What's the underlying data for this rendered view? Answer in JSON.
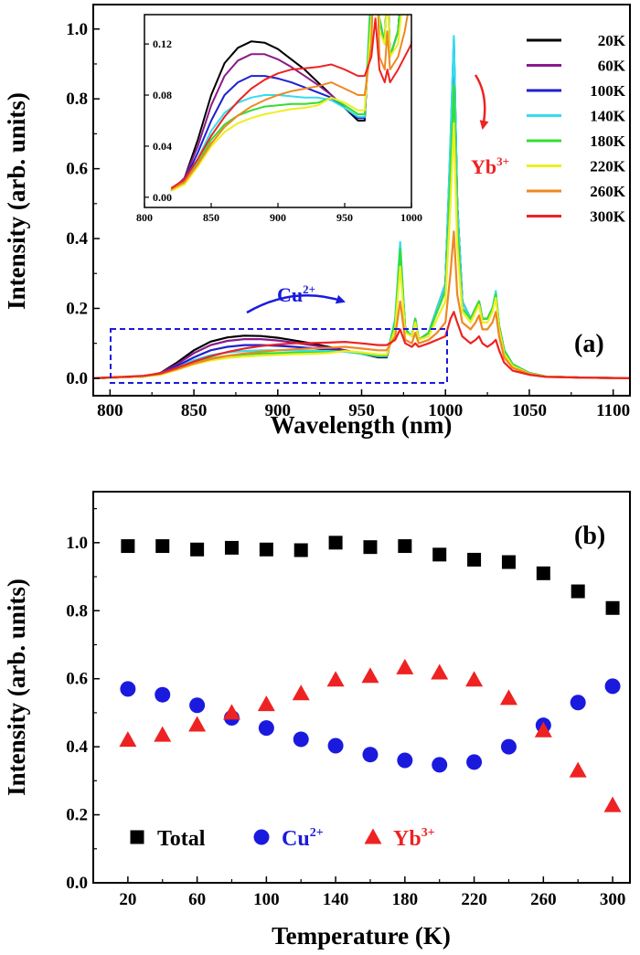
{
  "chart_data": [
    {
      "type": "line",
      "panel_label": "(a)",
      "xlabel": "Wavelength (nm)",
      "ylabel": "Intensity (arb. units)",
      "xlim": [
        790,
        1110
      ],
      "ylim": [
        -0.05,
        1.07
      ],
      "x_ticks": [
        "800",
        "850",
        "900",
        "950",
        "1000",
        "1050",
        "1100"
      ],
      "y_ticks": [
        "0.0",
        "0.2",
        "0.4",
        "0.6",
        "0.8",
        "1.0"
      ],
      "legend_position": "top-right",
      "series": [
        {
          "name": "20K",
          "color": "#000000",
          "x": [
            790,
            820,
            830,
            840,
            850,
            860,
            870,
            880,
            890,
            900,
            910,
            920,
            930,
            940,
            950,
            960,
            965,
            970,
            973,
            976,
            980,
            982,
            984,
            990,
            995,
            1000,
            1003,
            1005,
            1007,
            1010,
            1015,
            1018,
            1020,
            1022,
            1025,
            1028,
            1030,
            1032,
            1035,
            1040,
            1050,
            1060,
            1080,
            1110
          ],
          "y": [
            0,
            0.005,
            0.015,
            0.045,
            0.08,
            0.105,
            0.117,
            0.122,
            0.121,
            0.116,
            0.108,
            0.1,
            0.09,
            0.08,
            0.07,
            0.06,
            0.06,
            0.16,
            0.35,
            0.14,
            0.12,
            0.17,
            0.11,
            0.13,
            0.2,
            0.27,
            0.65,
            0.95,
            0.5,
            0.22,
            0.17,
            0.2,
            0.22,
            0.17,
            0.17,
            0.2,
            0.24,
            0.15,
            0.08,
            0.04,
            0.015,
            0.005,
            0.002,
            0
          ]
        },
        {
          "name": "60K",
          "color": "#8b1a8b",
          "x": [
            790,
            820,
            830,
            840,
            850,
            860,
            870,
            880,
            890,
            900,
            910,
            920,
            930,
            940,
            950,
            960,
            965,
            970,
            973,
            976,
            980,
            982,
            984,
            990,
            995,
            1000,
            1003,
            1005,
            1007,
            1010,
            1015,
            1018,
            1020,
            1022,
            1025,
            1028,
            1030,
            1032,
            1035,
            1040,
            1050,
            1060,
            1080,
            1110
          ],
          "y": [
            0,
            0.005,
            0.015,
            0.04,
            0.072,
            0.095,
            0.107,
            0.112,
            0.112,
            0.108,
            0.102,
            0.095,
            0.088,
            0.08,
            0.07,
            0.062,
            0.062,
            0.16,
            0.36,
            0.14,
            0.12,
            0.17,
            0.11,
            0.13,
            0.2,
            0.27,
            0.66,
            0.96,
            0.5,
            0.22,
            0.17,
            0.2,
            0.22,
            0.17,
            0.17,
            0.2,
            0.24,
            0.15,
            0.08,
            0.04,
            0.015,
            0.005,
            0.002,
            0
          ]
        },
        {
          "name": "100K",
          "color": "#1f1fcf",
          "x": [
            790,
            820,
            830,
            840,
            850,
            860,
            870,
            880,
            890,
            900,
            910,
            920,
            930,
            940,
            950,
            960,
            965,
            970,
            973,
            976,
            980,
            982,
            984,
            990,
            995,
            1000,
            1003,
            1005,
            1007,
            1010,
            1015,
            1018,
            1020,
            1022,
            1025,
            1028,
            1030,
            1032,
            1035,
            1040,
            1050,
            1060,
            1080,
            1110
          ],
          "y": [
            0,
            0.005,
            0.013,
            0.035,
            0.06,
            0.08,
            0.09,
            0.095,
            0.095,
            0.093,
            0.09,
            0.086,
            0.082,
            0.078,
            0.07,
            0.062,
            0.062,
            0.16,
            0.37,
            0.14,
            0.12,
            0.17,
            0.11,
            0.13,
            0.2,
            0.27,
            0.67,
            0.97,
            0.5,
            0.22,
            0.17,
            0.2,
            0.22,
            0.17,
            0.17,
            0.2,
            0.24,
            0.15,
            0.08,
            0.04,
            0.015,
            0.005,
            0.002,
            0
          ]
        },
        {
          "name": "140K",
          "color": "#33ddee",
          "x": [
            790,
            820,
            830,
            840,
            850,
            860,
            870,
            880,
            890,
            900,
            910,
            920,
            930,
            940,
            950,
            960,
            965,
            970,
            973,
            976,
            980,
            982,
            984,
            990,
            995,
            1000,
            1003,
            1005,
            1007,
            1010,
            1015,
            1018,
            1020,
            1022,
            1025,
            1028,
            1030,
            1032,
            1035,
            1040,
            1050,
            1060,
            1080,
            1110
          ],
          "y": [
            0,
            0.005,
            0.012,
            0.03,
            0.052,
            0.066,
            0.074,
            0.078,
            0.08,
            0.08,
            0.079,
            0.078,
            0.078,
            0.076,
            0.07,
            0.063,
            0.063,
            0.17,
            0.39,
            0.14,
            0.12,
            0.17,
            0.11,
            0.13,
            0.2,
            0.27,
            0.68,
            0.98,
            0.5,
            0.22,
            0.17,
            0.2,
            0.22,
            0.17,
            0.17,
            0.2,
            0.25,
            0.15,
            0.08,
            0.04,
            0.015,
            0.005,
            0.002,
            0
          ]
        },
        {
          "name": "180K",
          "color": "#33dd33",
          "x": [
            790,
            820,
            830,
            840,
            850,
            860,
            870,
            880,
            890,
            900,
            910,
            920,
            930,
            940,
            950,
            960,
            965,
            970,
            973,
            976,
            980,
            982,
            984,
            990,
            995,
            1000,
            1003,
            1005,
            1007,
            1010,
            1015,
            1018,
            1020,
            1022,
            1025,
            1028,
            1030,
            1032,
            1035,
            1040,
            1050,
            1060,
            1080,
            1110
          ],
          "y": [
            0,
            0.005,
            0.011,
            0.027,
            0.045,
            0.057,
            0.064,
            0.068,
            0.071,
            0.072,
            0.073,
            0.073,
            0.074,
            0.078,
            0.072,
            0.065,
            0.065,
            0.16,
            0.37,
            0.14,
            0.12,
            0.17,
            0.11,
            0.13,
            0.19,
            0.25,
            0.58,
            0.84,
            0.44,
            0.2,
            0.17,
            0.2,
            0.22,
            0.17,
            0.17,
            0.2,
            0.24,
            0.15,
            0.08,
            0.04,
            0.015,
            0.005,
            0.002,
            0
          ]
        },
        {
          "name": "220K",
          "color": "#eeee22",
          "x": [
            790,
            820,
            830,
            840,
            850,
            860,
            870,
            880,
            890,
            900,
            910,
            920,
            930,
            940,
            950,
            960,
            965,
            970,
            973,
            976,
            980,
            982,
            984,
            990,
            995,
            1000,
            1003,
            1005,
            1007,
            1010,
            1015,
            1018,
            1020,
            1022,
            1025,
            1028,
            1030,
            1032,
            1035,
            1040,
            1050,
            1060,
            1080,
            1110
          ],
          "y": [
            0,
            0.005,
            0.01,
            0.024,
            0.04,
            0.051,
            0.058,
            0.062,
            0.065,
            0.067,
            0.069,
            0.07,
            0.072,
            0.078,
            0.074,
            0.068,
            0.068,
            0.14,
            0.32,
            0.13,
            0.12,
            0.16,
            0.11,
            0.12,
            0.17,
            0.22,
            0.5,
            0.73,
            0.38,
            0.19,
            0.16,
            0.19,
            0.21,
            0.16,
            0.16,
            0.19,
            0.23,
            0.14,
            0.07,
            0.035,
            0.013,
            0.005,
            0.002,
            0
          ]
        },
        {
          "name": "260K",
          "color": "#ee8822",
          "x": [
            790,
            820,
            830,
            840,
            850,
            860,
            870,
            880,
            890,
            900,
            910,
            920,
            930,
            940,
            950,
            960,
            965,
            970,
            973,
            976,
            980,
            982,
            984,
            990,
            995,
            1000,
            1003,
            1005,
            1007,
            1010,
            1015,
            1018,
            1020,
            1022,
            1025,
            1028,
            1030,
            1032,
            1035,
            1040,
            1050,
            1060,
            1080,
            1110
          ],
          "y": [
            0,
            0.006,
            0.012,
            0.026,
            0.042,
            0.055,
            0.064,
            0.071,
            0.076,
            0.08,
            0.083,
            0.085,
            0.087,
            0.09,
            0.085,
            0.08,
            0.08,
            0.12,
            0.22,
            0.11,
            0.1,
            0.13,
            0.1,
            0.11,
            0.13,
            0.16,
            0.3,
            0.42,
            0.24,
            0.16,
            0.14,
            0.16,
            0.18,
            0.14,
            0.14,
            0.16,
            0.19,
            0.12,
            0.06,
            0.03,
            0.012,
            0.004,
            0.002,
            0
          ]
        },
        {
          "name": "300K",
          "color": "#ee2222",
          "x": [
            790,
            820,
            830,
            840,
            850,
            860,
            870,
            880,
            890,
            900,
            910,
            920,
            930,
            940,
            950,
            960,
            965,
            970,
            973,
            976,
            980,
            982,
            984,
            990,
            995,
            1000,
            1003,
            1005,
            1007,
            1010,
            1015,
            1018,
            1020,
            1022,
            1025,
            1028,
            1030,
            1032,
            1035,
            1040,
            1050,
            1060,
            1080,
            1110
          ],
          "y": [
            0,
            0.007,
            0.014,
            0.03,
            0.048,
            0.063,
            0.075,
            0.085,
            0.092,
            0.097,
            0.1,
            0.101,
            0.102,
            0.104,
            0.1,
            0.095,
            0.095,
            0.11,
            0.14,
            0.1,
            0.09,
            0.1,
            0.09,
            0.1,
            0.11,
            0.12,
            0.17,
            0.19,
            0.16,
            0.12,
            0.1,
            0.11,
            0.12,
            0.1,
            0.09,
            0.1,
            0.11,
            0.08,
            0.045,
            0.022,
            0.01,
            0.004,
            0.002,
            0
          ]
        }
      ],
      "annotations": [
        {
          "text": "Cu",
          "sup": "2+",
          "color": "#1a1adf"
        },
        {
          "text": "Yb",
          "sup": "3+",
          "color": "#ee2222"
        }
      ],
      "inset": {
        "xlim": [
          800,
          1000
        ],
        "ylim": [
          -0.008,
          0.143
        ],
        "x_ticks": [
          "800",
          "850",
          "900",
          "950",
          "1000"
        ],
        "y_ticks": [
          "0.00",
          "0.04",
          "0.08",
          "0.12"
        ]
      }
    },
    {
      "type": "scatter",
      "panel_label": "(b)",
      "xlabel": "Temperature (K)",
      "ylabel": "Intensity (arb. units)",
      "xlim": [
        0,
        310
      ],
      "ylim": [
        0,
        1.15
      ],
      "x_ticks": [
        "20",
        "60",
        "100",
        "140",
        "180",
        "220",
        "260",
        "300"
      ],
      "y_ticks": [
        "0.0",
        "0.2",
        "0.4",
        "0.6",
        "0.8",
        "1.0"
      ],
      "legend_position": "bottom-left",
      "x": [
        20,
        40,
        60,
        80,
        100,
        120,
        140,
        160,
        180,
        200,
        220,
        240,
        260,
        280,
        300
      ],
      "series": [
        {
          "name": "Total",
          "sup": "",
          "marker": "square",
          "color": "#000000",
          "values": [
            0.99,
            0.99,
            0.98,
            0.985,
            0.98,
            0.978,
            1.0,
            0.987,
            0.99,
            0.965,
            0.95,
            0.943,
            0.91,
            0.857,
            0.808
          ]
        },
        {
          "name": "Cu",
          "sup": "2+",
          "marker": "circle",
          "color": "#1a1adf",
          "values": [
            0.57,
            0.553,
            0.522,
            0.485,
            0.455,
            0.422,
            0.403,
            0.377,
            0.36,
            0.347,
            0.355,
            0.4,
            0.463,
            0.53,
            0.578
          ]
        },
        {
          "name": "Yb",
          "sup": "3+",
          "marker": "triangle",
          "color": "#ee2222",
          "values": [
            0.42,
            0.435,
            0.465,
            0.5,
            0.525,
            0.557,
            0.597,
            0.608,
            0.633,
            0.618,
            0.597,
            0.543,
            0.448,
            0.33,
            0.228
          ]
        }
      ]
    }
  ]
}
